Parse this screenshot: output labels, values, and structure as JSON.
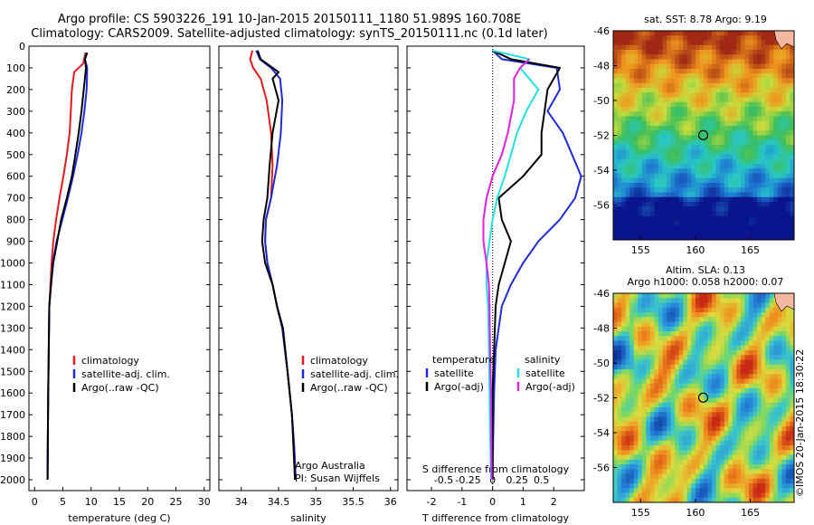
{
  "header": {
    "line1": "Argo profile: CS 5903226_191 10-Jan-2015 20150111_1180 51.989S 160.708E",
    "line2": "Climatology: CARS2009. Satellite-adjusted climatology: synTS_20150111.nc (0.1d later)"
  },
  "colors": {
    "climatology": "#e41a1c",
    "satellite": "#1f2bd8",
    "argo": "#000000",
    "sat_s": "#22e0e0",
    "argo_s": "#e020e0"
  },
  "depth_ticks": [
    "0",
    "100",
    "200",
    "300",
    "400",
    "500",
    "600",
    "700",
    "800",
    "900",
    "1000",
    "1100",
    "1200",
    "1300",
    "1400",
    "1500",
    "1600",
    "1700",
    "1800",
    "1900",
    "2000"
  ],
  "chart_data": [
    {
      "type": "line",
      "panel": "temperature",
      "xlabel": "temperature (deg C)",
      "ylabel": "",
      "xlim": [
        -1,
        31
      ],
      "ylim": [
        2050,
        0
      ],
      "y_reversed": true,
      "xticks": [
        "0",
        "5",
        "10",
        "15",
        "20",
        "25",
        "30"
      ],
      "legend": [
        "climatology",
        "satellite-adj. clim.",
        "Argo(..raw -QC)"
      ],
      "series": [
        {
          "name": "climatology",
          "color": "#e41a1c",
          "x": [
            9.0,
            8.6,
            7.0,
            6.6,
            6.4,
            6.2,
            5.7,
            5.1,
            4.4,
            3.8,
            3.3,
            3.0,
            2.8,
            2.6,
            2.5,
            2.4,
            2.35,
            2.3
          ],
          "y": [
            30,
            80,
            120,
            200,
            300,
            400,
            500,
            600,
            700,
            800,
            900,
            1000,
            1100,
            1200,
            1400,
            1600,
            1800,
            2000
          ]
        },
        {
          "name": "satellite-adj. clim.",
          "color": "#1f2bd8",
          "x": [
            9.2,
            8.9,
            9.3,
            9.2,
            8.8,
            8.3,
            7.6,
            6.8,
            5.9,
            4.9,
            3.9,
            3.2,
            2.9,
            2.6,
            2.5,
            2.4,
            2.35,
            2.3
          ],
          "y": [
            30,
            60,
            100,
            200,
            300,
            400,
            500,
            600,
            700,
            800,
            900,
            1000,
            1100,
            1200,
            1400,
            1600,
            1800,
            2000
          ]
        },
        {
          "name": "Argo(..raw -QC)",
          "color": "#000000",
          "x": [
            9.3,
            8.9,
            9.1,
            8.7,
            8.3,
            7.8,
            7.2,
            6.6,
            5.7,
            4.7,
            4.0,
            3.3,
            2.9,
            2.6,
            2.5,
            2.4,
            2.35,
            2.3
          ],
          "y": [
            30,
            60,
            100,
            200,
            300,
            400,
            500,
            600,
            700,
            800,
            900,
            1000,
            1100,
            1200,
            1400,
            1600,
            1800,
            2000
          ]
        }
      ]
    },
    {
      "type": "line",
      "panel": "salinity",
      "xlabel": "salinity",
      "ylabel": "",
      "xlim": [
        33.7,
        36.1
      ],
      "ylim": [
        2050,
        0
      ],
      "y_reversed": true,
      "xticks": [
        "34",
        "34.5",
        "35",
        "35.5",
        "36"
      ],
      "legend": [
        "climatology",
        "satellite-adj. clim.",
        "Argo(..raw -QC)"
      ],
      "annotations": [
        "Argo Australia",
        "PI: Susan Wijffels"
      ],
      "series": [
        {
          "name": "climatology",
          "color": "#e41a1c",
          "x": [
            34.15,
            34.12,
            34.16,
            34.26,
            34.34,
            34.4,
            34.42,
            34.4,
            34.33,
            34.32,
            34.35,
            34.42,
            34.48,
            34.55,
            34.62,
            34.68,
            34.71,
            34.73
          ],
          "y": [
            20,
            60,
            100,
            150,
            250,
            400,
            550,
            700,
            800,
            900,
            1000,
            1100,
            1200,
            1300,
            1500,
            1700,
            1850,
            2000
          ]
        },
        {
          "name": "satellite-adj. clim.",
          "color": "#1f2bd8",
          "x": [
            34.2,
            34.25,
            34.4,
            34.52,
            34.55,
            34.53,
            34.48,
            34.4,
            34.33,
            34.32,
            34.35,
            34.42,
            34.48,
            34.55,
            34.62,
            34.68,
            34.71,
            34.73
          ],
          "y": [
            20,
            60,
            100,
            150,
            250,
            400,
            550,
            700,
            800,
            900,
            1000,
            1100,
            1200,
            1300,
            1500,
            1700,
            1850,
            2000
          ]
        },
        {
          "name": "Argo(..raw -QC)",
          "color": "#000000",
          "x": [
            34.22,
            34.26,
            34.5,
            34.42,
            34.5,
            34.42,
            34.38,
            34.35,
            34.3,
            34.28,
            34.32,
            34.42,
            34.48,
            34.56,
            34.62,
            34.68,
            34.7,
            34.72
          ],
          "y": [
            20,
            60,
            120,
            150,
            250,
            400,
            550,
            700,
            800,
            900,
            1000,
            1100,
            1200,
            1300,
            1500,
            1700,
            1850,
            2000
          ]
        }
      ]
    },
    {
      "type": "line",
      "panel": "difference",
      "xlabel": "T difference from climatology",
      "xlabel2": "S difference from climatology",
      "xlim": [
        -2.8,
        3.0
      ],
      "ylim": [
        2050,
        0
      ],
      "y_reversed": true,
      "xticks": [
        "-2",
        "-1",
        "0",
        "1",
        "2"
      ],
      "xticks_s": [
        "-0.5",
        "-0.25",
        "0",
        "0.25",
        "0.5"
      ],
      "legend_headers": [
        "temperature",
        "salinity"
      ],
      "legend": [
        "satellite",
        "Argo(-adj)",
        "satellite",
        "Argo(-adj)"
      ],
      "series": [
        {
          "name": "satellite",
          "color": "#1f2bd8",
          "x": [
            0.0,
            0.3,
            2.1,
            2.2,
            1.8,
            2.3,
            2.6,
            2.9,
            2.7,
            2.2,
            1.5,
            1.0,
            0.6,
            0.3,
            0.1,
            0.05,
            0.02,
            0.0
          ],
          "y": [
            20,
            60,
            100,
            200,
            300,
            400,
            500,
            600,
            700,
            800,
            900,
            1000,
            1100,
            1200,
            1400,
            1600,
            1800,
            2000
          ]
        },
        {
          "name": "Argo(-adj)",
          "color": "#000000",
          "x": [
            0.0,
            0.6,
            2.2,
            1.8,
            1.7,
            1.6,
            1.6,
            1.0,
            0.2,
            0.3,
            0.6,
            0.4,
            0.2,
            0.1,
            0.05,
            0.0,
            0.0,
            0.0
          ],
          "y": [
            20,
            60,
            100,
            200,
            300,
            400,
            500,
            600,
            700,
            800,
            900,
            1000,
            1100,
            1200,
            1400,
            1600,
            1800,
            2000
          ]
        },
        {
          "name": "satellite",
          "color": "#22e0e0",
          "x": [
            0.0,
            1.2,
            0.9,
            1.5,
            1.1,
            0.8,
            0.6,
            0.4,
            0.15,
            0.0,
            -0.1,
            -0.2,
            -0.2,
            -0.15,
            -0.12,
            -0.1,
            -0.08,
            -0.05
          ],
          "y": [
            20,
            60,
            100,
            200,
            300,
            400,
            500,
            600,
            700,
            800,
            900,
            1000,
            1100,
            1200,
            1400,
            1600,
            1800,
            2000
          ]
        },
        {
          "name": "Argo(-adj)",
          "color": "#e020e0",
          "x": [
            1.2,
            0.9,
            0.7,
            0.7,
            0.5,
            0.3,
            0.0,
            -0.2,
            -0.3,
            -0.3,
            -0.2,
            -0.12,
            -0.1,
            -0.08,
            -0.05,
            -0.04,
            -0.03
          ],
          "y": [
            60,
            100,
            150,
            250,
            400,
            500,
            600,
            700,
            800,
            900,
            1000,
            1100,
            1200,
            1400,
            1600,
            1800,
            2000
          ]
        }
      ]
    },
    {
      "type": "heatmap",
      "panel": "sst_map",
      "title": "sat. SST: 8.78 Argo: 9.19",
      "xlim": [
        152.5,
        169
      ],
      "ylim": [
        -58,
        -46
      ],
      "xticks": [
        "155",
        "160",
        "165"
      ],
      "yticks": [
        "-46",
        "-48",
        "-50",
        "-52",
        "-54",
        "-56"
      ],
      "marker": {
        "lon": 160.708,
        "lat": -51.989
      },
      "field": "warm in north, cool in south"
    },
    {
      "type": "heatmap",
      "panel": "sla_map",
      "title": "Altim. SLA: 0.13",
      "subtitle": "Argo h1000: 0.058 h2000: 0.07",
      "xlim": [
        152.5,
        169
      ],
      "ylim": [
        -58,
        -46
      ],
      "xticks": [
        "155",
        "160",
        "165"
      ],
      "yticks": [
        "-46",
        "-48",
        "-50",
        "-52",
        "-54",
        "-56"
      ],
      "marker": {
        "lon": 160.708,
        "lat": -51.989
      },
      "field": "mesoscale eddies"
    }
  ],
  "side_text": "©IMOS 20-Jan-2015 18:30:22"
}
